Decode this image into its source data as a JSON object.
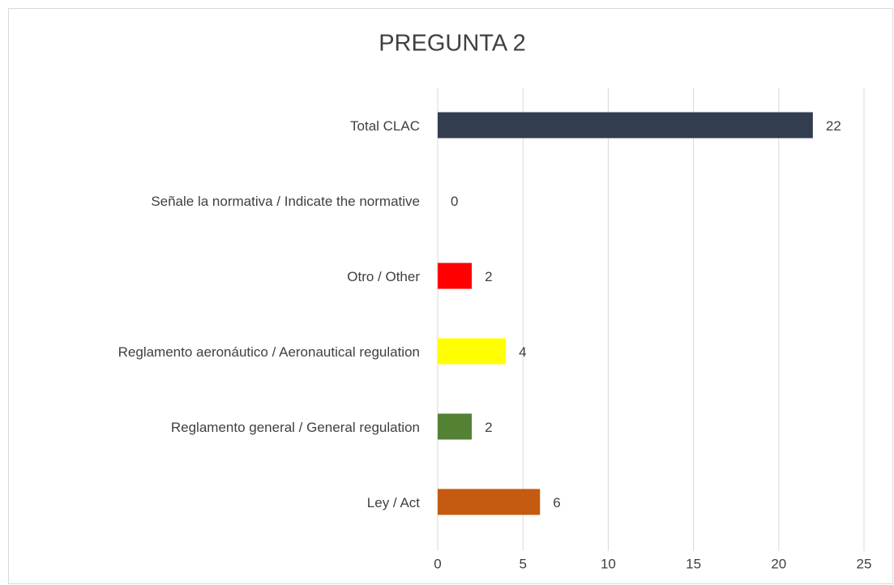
{
  "chart_data": {
    "type": "hbar",
    "title": "PREGUNTA 2",
    "categories": [
      "Total CLAC",
      "Señale la normativa / Indicate the normative",
      "Otro / Other",
      "Reglamento aeronáutico / Aeronautical regulation",
      "Reglamento general / General regulation",
      "Ley / Act"
    ],
    "values": [
      22,
      0,
      2,
      4,
      2,
      6
    ],
    "colors": [
      "#323e4f",
      "#a5a5a5",
      "#ff0000",
      "#ffff00",
      "#548235",
      "#c55a11"
    ],
    "xlim": [
      0,
      25
    ],
    "xticks": [
      0,
      5,
      10,
      15,
      20,
      25
    ],
    "grid": true
  }
}
